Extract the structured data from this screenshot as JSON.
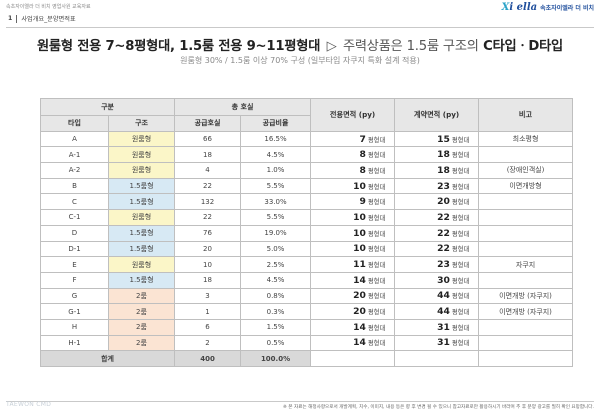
{
  "header": {
    "top_caption": "속초자이엘라 더 비치 영업사원 교육자료",
    "brand_logo_prefix": "X",
    "brand_logo_rest": "i ella",
    "brand_text": "속초자이엘라 더 비치",
    "section_number": "1",
    "section_title": "사업개요_분양면적표"
  },
  "headline": {
    "part1": "원룸형 전용 7~8평형대, 1.5룸 전용 9~11평형대",
    "arrow": "▷",
    "part2": "주력상품은 1.5룸 구조의",
    "part3": "C타입ㆍD타입"
  },
  "subheadline": "원룸형 30% / 1.5룸 이상 70% 구성 (일부타입 자쿠지 특화 설계 적용)",
  "table": {
    "headers": {
      "group_division": "구분",
      "group_total": "총 호실",
      "type": "타입",
      "structure": "구조",
      "supply_units": "공급호실",
      "supply_ratio": "공급비율",
      "exclusive_area": "전용면적 (py)",
      "contract_area": "계약면적 (py)",
      "remarks": "비고"
    },
    "unit_label": "평형대",
    "rows": [
      {
        "type": "A",
        "structure": "원룸형",
        "struct_kind": "one",
        "units": "66",
        "ratio": "16.5%",
        "exclusive": "7",
        "contract": "15",
        "note": "최소평형"
      },
      {
        "type": "A-1",
        "structure": "원룸형",
        "struct_kind": "one",
        "units": "18",
        "ratio": "4.5%",
        "exclusive": "8",
        "contract": "18",
        "note": ""
      },
      {
        "type": "A-2",
        "structure": "원룸형",
        "struct_kind": "one",
        "units": "4",
        "ratio": "1.0%",
        "exclusive": "8",
        "contract": "18",
        "note": "(장애인객실)"
      },
      {
        "type": "B",
        "structure": "1.5룸형",
        "struct_kind": "onehalf",
        "units": "22",
        "ratio": "5.5%",
        "exclusive": "10",
        "contract": "23",
        "note": "이면개방형"
      },
      {
        "type": "C",
        "structure": "1.5룸형",
        "struct_kind": "onehalf",
        "units": "132",
        "ratio": "33.0%",
        "exclusive": "9",
        "contract": "20",
        "note": ""
      },
      {
        "type": "C-1",
        "structure": "원룸형",
        "struct_kind": "one",
        "units": "22",
        "ratio": "5.5%",
        "exclusive": "10",
        "contract": "22",
        "note": ""
      },
      {
        "type": "D",
        "structure": "1.5룸형",
        "struct_kind": "onehalf",
        "units": "76",
        "ratio": "19.0%",
        "exclusive": "10",
        "contract": "22",
        "note": ""
      },
      {
        "type": "D-1",
        "structure": "1.5룸형",
        "struct_kind": "onehalf",
        "units": "20",
        "ratio": "5.0%",
        "exclusive": "10",
        "contract": "22",
        "note": ""
      },
      {
        "type": "E",
        "structure": "원룸형",
        "struct_kind": "one",
        "units": "10",
        "ratio": "2.5%",
        "exclusive": "11",
        "contract": "23",
        "note": "자쿠지"
      },
      {
        "type": "F",
        "structure": "1.5룸형",
        "struct_kind": "onehalf",
        "units": "18",
        "ratio": "4.5%",
        "exclusive": "14",
        "contract": "30",
        "note": ""
      },
      {
        "type": "G",
        "structure": "2룸",
        "struct_kind": "two",
        "units": "3",
        "ratio": "0.8%",
        "exclusive": "20",
        "contract": "44",
        "note": "이면개방 (자쿠지)"
      },
      {
        "type": "G-1",
        "structure": "2룸",
        "struct_kind": "two",
        "units": "1",
        "ratio": "0.3%",
        "exclusive": "20",
        "contract": "44",
        "note": "이면개방 (자쿠지)"
      },
      {
        "type": "H",
        "structure": "2룸",
        "struct_kind": "two",
        "units": "6",
        "ratio": "1.5%",
        "exclusive": "14",
        "contract": "31",
        "note": ""
      },
      {
        "type": "H-1",
        "structure": "2룸",
        "struct_kind": "two",
        "units": "2",
        "ratio": "0.5%",
        "exclusive": "14",
        "contract": "31",
        "note": ""
      }
    ],
    "total": {
      "label": "합계",
      "units": "400",
      "ratio": "100.0%"
    }
  },
  "footer": {
    "watermark": "TAEWON CMD",
    "disclaimer": "※ 본 자료는 해정사항으로서 개발계획, 치수, 이미지, 내용 등은 향 후 변경 될 수 있으니 참고자료로만 활용하시기 바라며 추 후 분양 광고를 필히 확인 요망합니다."
  },
  "colors": {
    "one_room": "#fbf6c8",
    "one_half_room": "#d7e9f4",
    "two_room": "#fbe4d3",
    "header_bg": "#e7e7e7",
    "brand": "#1f4e9c"
  }
}
